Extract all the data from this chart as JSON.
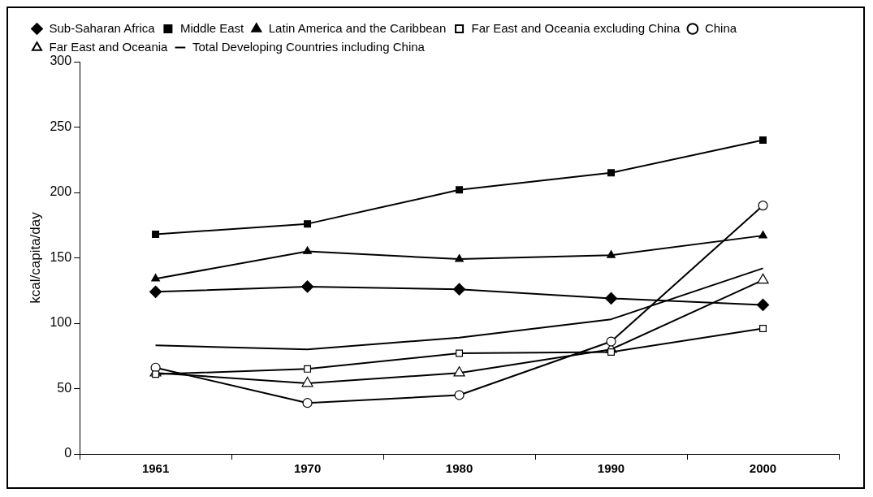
{
  "chart_data": {
    "type": "line",
    "ylabel": "kcal/capita/day",
    "categories": [
      "1961",
      "1970",
      "1980",
      "1990",
      "2000"
    ],
    "ylim": [
      0,
      300
    ],
    "yticks": [
      0,
      50,
      100,
      150,
      200,
      250,
      300
    ],
    "grid": false,
    "legend": "top",
    "line_style": "solid",
    "series": [
      {
        "name": "Sub-Saharan Africa",
        "color": "#000000",
        "marker": "diamond",
        "values": [
          124,
          128,
          126,
          119,
          114
        ]
      },
      {
        "name": "Middle East",
        "color": "#000000",
        "marker": "square",
        "values": [
          168,
          176,
          202,
          215,
          240
        ]
      },
      {
        "name": "Latin America and the Caribbean",
        "color": "#000000",
        "marker": "triangle",
        "values": [
          134,
          155,
          149,
          152,
          167
        ]
      },
      {
        "name": "Far East and Oceania excluding China",
        "color": "#000000",
        "marker": "square-open",
        "values": [
          61,
          65,
          77,
          78,
          96
        ]
      },
      {
        "name": "China",
        "color": "#000000",
        "marker": "circle-open",
        "values": [
          66,
          39,
          45,
          86,
          190
        ]
      },
      {
        "name": "Far East and Oceania",
        "color": "#000000",
        "marker": "triangle-open",
        "values": [
          62,
          54,
          62,
          80,
          133
        ]
      },
      {
        "name": "Total Developing Countries including China",
        "color": "#000000",
        "marker": "none",
        "values": [
          83,
          80,
          89,
          103,
          142
        ]
      }
    ]
  }
}
